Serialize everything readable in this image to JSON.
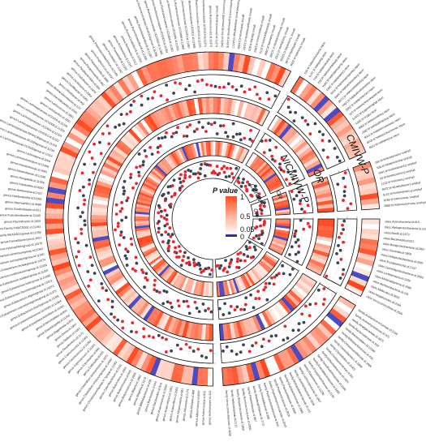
{
  "chart_data": {
    "type": "circos",
    "ring_labels": [
      "CMIVW-P",
      "OR",
      "NICMIVW-P",
      "OR",
      "CMIVW-P",
      "OR"
    ],
    "legend": {
      "title": "P value",
      "ticks": [
        "1",
        "0.5",
        "0.05",
        "0"
      ],
      "colors": {
        "high": "#ff4b1f",
        "mid": "#ffd6c8",
        "low": "#2a2aa0",
        "white": "#ffffff"
      }
    },
    "dot_colors": {
      "risk": "#e8262d",
      "protective": "#3d4451"
    },
    "sectors": [
      {
        "name": "class",
        "taxa": [
          "class.Actinobacteria.id.419",
          "class.Alphaproteobacteria.id.2379",
          "class.Bacilli.id.1673",
          "class.Bacteroidia.id.912",
          "class.Betaproteobacteria.id.2867",
          "class.Clostridia.id.1859",
          "class.Deltaproteobacteria.id.3087",
          "class.Erysipelotrichia.id.2147",
          "class.Gammaproteobacteria.id.3303",
          "class.Lentisphaeria.id.2250",
          "class.Melainabacteria.id.1589",
          "class.Methanobacteria.id.119",
          "class.Mollicutes.id.3920",
          "class.Negativicutes.id.2164",
          "class.Verrucomicrobiae.id.4029"
        ]
      },
      {
        "name": "family",
        "taxa": [
          "family.Acidaminococcaceae.id.2166",
          "family.Actinomycetaceae.id.421",
          "family.Alcaligenaceae.id.2875",
          "family.Bacteroidaceae.id.918",
          "family.Bacteroidales.id.11398",
          "family.Bifidobacteriaceae.id.433",
          "family.Christensenellaceae.id.1866",
          "family.Clostridiaceae1.id.1869",
          "family.Clostridiales.id.11401",
          "family.Coriobacteriaceae.id.811",
          "family.Defluviitaleaceae.id.1924",
          "family.Desulfovibrionaceae.id.3169",
          "family.Enterobacteriaceae.id.3469",
          "family.Erysipelotrichaceae.id.2149",
          "family.Eubacterium.id.11296",
          "family.Lachnospiraceae.id.1987",
          "family.Lactobacillaceae.id.1836",
          "family.Methanobacteriaceae.id.121",
          "family.Oxalobacteraceae.id.2966",
          "family.Pasteurellaceae.id.3689",
          "family.Peptococcaceae.id.2024",
          "family.Peptostreptococcaceae.id.2042",
          "family.Porphyromonadaceae.id.943",
          "family.Prevotellaceae.id.960",
          "family.Rhodospirillaceae.id.2717",
          "family.Rikenellaceae.id.967",
          "family.Ruminococcaceae.id.2050",
          "family.Streptococcaceae.id.1850",
          "family.Veillonellaceae.id.2172",
          "family.Verrucomicrobiaceae.id.4036"
        ]
      },
      {
        "name": "genus",
        "taxa": [
          "genus.Actinomyces.id.423",
          "genus.Adlercreutzia.id.812",
          "genus.Akkermansia.id.4037",
          "genus.Alistipes.id.968",
          "genus.Allisonella.id.2174",
          "genus.Alloprevotella.id.961",
          "genus.Anaerofilum.id.2053",
          "genus.Anaerostipes.id.1991",
          "genus.Anaerotruncus.id.2054",
          "genus.Bacteroides.id.918",
          "genus.Barnesiella.id.944",
          "genus.Bifidobacterium.id.436",
          "genus.Bilophila.id.3170",
          "genus.Blautia.id.1992",
          "genus.Butyricicoccus.id.2055",
          "genus.Butyricimonas.id.945",
          "genus.Butyrivibrio.id.1993",
          "genus.Catenibacterium.id.2153",
          "genus.Christensenellaceae.R.7group.id.11283",
          "genus.Clostridium.innocuumgroup.id.14397",
          "genus.Clostridium.sensustricto1.id.1873",
          "genus.Collinsella.id.815",
          "genus.Coprobacter.id.949",
          "genus.Coprococcus1.id.11301",
          "genus.Coprococcus2.id.11302",
          "genus.Coprococcus3.id.11303",
          "genus.Desulfovibrio.id.3173",
          "genus.Dialister.id.2183",
          "genus.Dorea.id.1997",
          "genus.Eggerthella.id.819",
          "genus.Eisenbergiella.id.11304",
          "genus.Enterorhabdus.id.820",
          "genus.Erysipelatoclostridium.id.11381",
          "genus.Erysipelotrichaceae.UCG003.id.11384",
          "genus.Eubacterium.brachygroup.id.11296",
          "genus.Eubacterium.coprostanoligenesgroup.id.11375",
          "genus.Eubacterium.eligensgroup.id.14372",
          "genus.Eubacterium.fissicatenagroup.id.14373",
          "genus.Eubacterium.hallii.group.id.11338",
          "genus.Eubacterium.nodatumgroup.id.11297",
          "genus.Eubacterium.oxidoreducensgroup.id.11339",
          "genus.Eubacterium.rectalegroup.id.14374",
          "genus.Eubacterium.ruminantiumgroup.id.11340",
          "genus.Eubacterium.ventriosumgroup.id.11341",
          "genus.Eubacterium.xylanophilumgroup.id.14375",
          "genus.Faecalibacterium.id.2057",
          "genus.Family.XIIIAD3011group.id.11293",
          "genus.Family.XIIIUCG001.id.11294",
          "genus.Flavonifractor.id.2059",
          "genus.Fusicatenibacter.id.11305",
          "genus.Gordonibacter.id.821",
          "genus.Haemophilus.id.3698",
          "genus.Holdemanella.id.11393",
          "genus.Holdemania.id.2157",
          "genus.Howardella.id.2000",
          "genus.Hungatella.id.11306",
          "genus.Intestinibacter.id.11345",
          "genus.Intestinimonas.id.2062",
          "genus.Lachnoclostridium.id.11308",
          "genus.Lachnospira.id.2004",
          "genus.Lachnospiraceae.FCS020group.id.11314",
          "genus.Lachnospiraceae.NC2004group.id.11316",
          "genus.Lachnospiraceae.NK4A136group.id.11319",
          "genus.Lachnospiraceae.UCG001.id.11321",
          "genus.Lachnospiraceae.UCG004.id.11324",
          "genus.Lachnospiraceae.UCG008.id.11328",
          "genus.Lachnospiraceae.UCG010.id.11330",
          "genus.Lactobacillus.id.1837",
          "genus.Lactococcus.id.1851",
          "genus.Marvinbryantia.id.2005",
          "genus.Methanobrevibacter.id.123",
          "genus.Odoribacter.id.952",
          "genus.Oscillibacter.id.2063",
          "genus.Oscillospira.id.2064",
          "genus.Oxalobacter.id.2978",
          "genus.Parabacteroides.id.954",
          "genus.Paraprevotella.id.962",
          "genus.Parasutterella.id.2892",
          "genus.Peptococcus.id.2037",
          "genus.Phascolarctobacterium.id.2168",
          "genus.Prevotella7.id.11182",
          "genus.Prevotella9.id.11183",
          "genus.Romboutsia.id.11347",
          "genus.Roseburia.id.2012",
          "genus.Ruminiclostridium5.id.11355",
          "genus.Ruminiclostridium6.id.11356",
          "genus.Ruminiclostridium9.id.11357",
          "genus.Ruminococcaceae.NK4A214group.id.11358",
          "genus.Ruminococcaceae.UCG002.id.11360",
          "genus.Ruminococcaceae.UCG003.id.11361",
          "genus.Ruminococcaceae.UCG004.id.11362",
          "genus.Ruminococcaceae.UCG005.id.11363",
          "genus.Ruminococcaceae.UCG009.id.11366",
          "genus.Ruminococcaceae.UCG010.id.11367",
          "genus.Ruminococcaceae.UCG011.id.11368",
          "genus.Ruminococcaceae.UCG013.id.11370",
          "genus.Ruminococcaceae.UCG014.id.11371",
          "genus.Ruminococcus1.id.11373",
          "genus.Ruminococcus2.id.11374",
          "genus.Ruminococcus.gauvreauiigroup.id.11342",
          "genus.Ruminococcus.gnavusgroup.id.14376",
          "genus.Ruminococcus.torquesgroup.id.14377",
          "genus.Sellimonas.id.14369",
          "genus.Senegalimassilia.id.11160",
          "genus.Slackia.id.825",
          "genus.Streptococcus.id.1853",
          "genus.Subdoligranulum.id.2070",
          "genus.Sutterella.id.2896",
          "genus.Terrisporobacter.id.11348",
          "genus.Turicibacter.id.2162",
          "genus.Tyzzerella3.id.11335",
          "genus.Veillonella.id.2198",
          "genus.Victivallis.id.2256"
        ]
      },
      {
        "name": "order",
        "taxa": [
          "order.Actinomycetales.id.420",
          "order.Bacillales.id.1674",
          "order.Bacteroidales.id.913",
          "order.Bifidobacteriales.id.432",
          "order.Burkholderiales.id.2874",
          "order.Clostridiales.id.1863",
          "order.Desulfovibrionales.id.3156",
          "order.Enterobacteriales.id.3468",
          "order.Erysipelotrichales.id.2148",
          "order.Gastranaerophilales.id.1591",
          "order.Lactobacillales.id.1800",
          "order.Methanobacteriales.id.120",
          "order.MollicutesRF9.id.11579",
          "order.NB1n.id.3953",
          "order.Pasteurellales.id.3688",
          "order.Rhodospirillales.id.2667",
          "order.Selenomonadales.id.2165",
          "order.Verrucomicrobiales.id.4030",
          "order.Victivallales.id.2254"
        ]
      },
      {
        "name": "phylum",
        "taxa": [
          "phylum.Actinobacteria.id.400",
          "phylum.Bacteroidetes.id.905",
          "phylum.Cyanobacteria.id.1500",
          "phylum.Euryarchaeota.id.55",
          "phylum.Firmicutes.id.1672",
          "phylum.Lentisphaerae.id.2238",
          "phylum.Proteobacteria.id.2375",
          "phylum.Tenericutes.id.3919",
          "phylum.Verrucomicrobia.id.3982"
        ]
      }
    ]
  }
}
